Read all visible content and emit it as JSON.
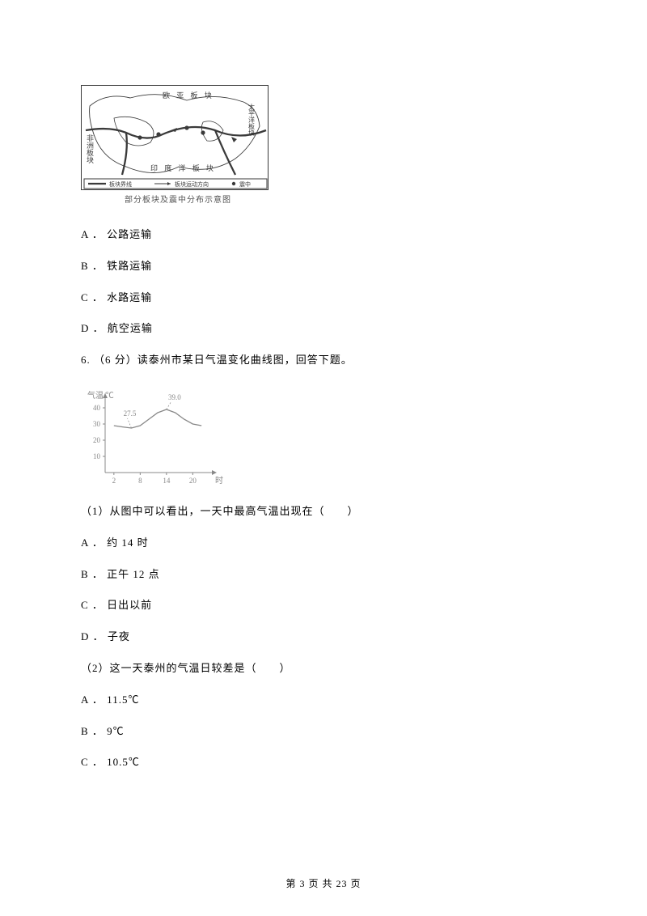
{
  "map": {
    "caption": "部分板块及震中分布示意图",
    "legend_left": "板块界线",
    "legend_mid": "板块运动方向",
    "legend_right": "震中",
    "label_top": "欧 亚 板 块",
    "label_left": "非洲板块",
    "label_right": "太平洋板块",
    "label_bottom": "印 度 洋 板 块",
    "ink": "#3a3a3a"
  },
  "q5": {
    "A": "A ． 公路运输",
    "B": "B ． 铁路运输",
    "C": "C ． 水路运输",
    "D": "D ． 航空运输"
  },
  "q6": {
    "stem": "6.  （6 分）读泰州市某日气温变化曲线图，回答下题。",
    "sub1": "（1）从图中可以看出，一天中最高气温出现在（　　）",
    "sub1A": "A ． 约 14 时",
    "sub1B": "B ． 正午 12 点",
    "sub1C": "C ． 日出以前",
    "sub1D": "D ． 子夜",
    "sub2": "（2）这一天泰州的气温日较差是（　　）",
    "sub2A": "A ． 11.5℃",
    "sub2B": "B ． 9℃",
    "sub2C": "C ． 10.5℃"
  },
  "chart": {
    "ylabel": "气温/℃",
    "xlabel": "时",
    "y_ticks": [
      10,
      20,
      30,
      40
    ],
    "x_ticks": [
      2,
      8,
      14,
      20
    ],
    "min_label": "27.5",
    "max_label": "39.0",
    "line_color": "#888888",
    "axis_color": "#888888",
    "curve": {
      "points": [
        {
          "x": 2,
          "y": 29
        },
        {
          "x": 4,
          "y": 28.2
        },
        {
          "x": 6,
          "y": 27.5
        },
        {
          "x": 8,
          "y": 29
        },
        {
          "x": 10,
          "y": 33
        },
        {
          "x": 12,
          "y": 37
        },
        {
          "x": 14,
          "y": 39
        },
        {
          "x": 16,
          "y": 37
        },
        {
          "x": 18,
          "y": 33
        },
        {
          "x": 20,
          "y": 30
        },
        {
          "x": 22,
          "y": 29
        }
      ],
      "xlim": [
        0,
        24
      ],
      "ylim": [
        0,
        45
      ]
    }
  },
  "footer": "第 3 页 共 23 页"
}
